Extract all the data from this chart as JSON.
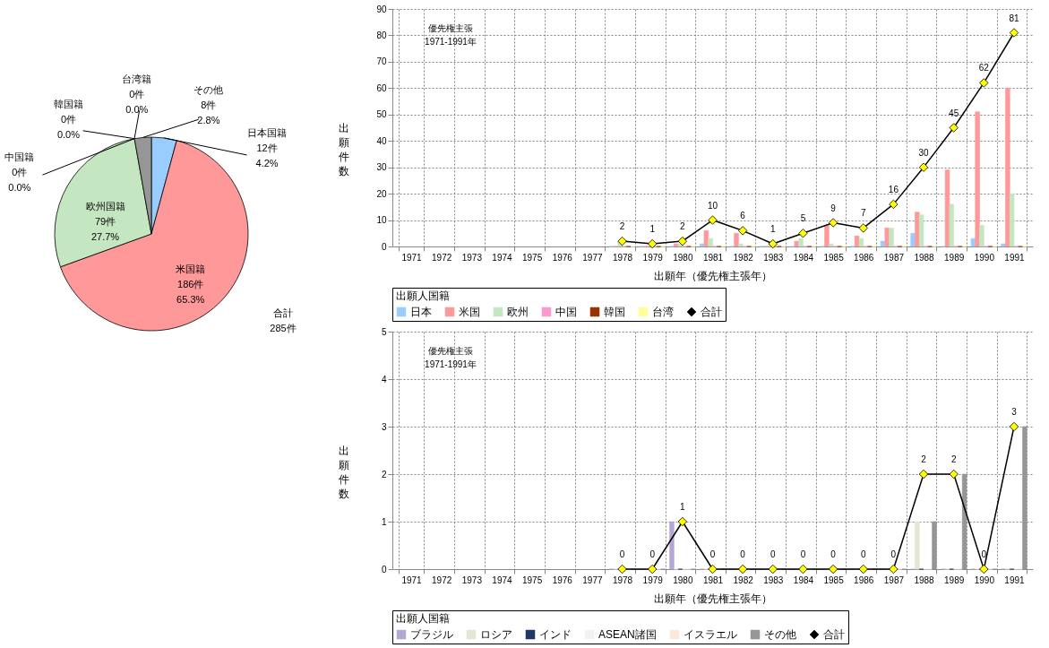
{
  "chart_data": [
    {
      "type": "pie",
      "categories": [
        "日本国籍",
        "米国籍",
        "欧州国籍",
        "中国籍",
        "韓国籍",
        "台湾籍",
        "その他"
      ],
      "values": [
        12,
        186,
        79,
        0,
        0,
        0,
        8
      ],
      "colors": [
        "#99ccff",
        "#ff9999",
        "#c4e6c0",
        "#ff99cc",
        "#993300",
        "#ffff99",
        "#969696"
      ],
      "value_labels": [
        "12件\n4.2%",
        "186件\n65.3%",
        "79件\n27.7%",
        "0件\n0.0%",
        "0件\n0.0%",
        "0件\n0.0%",
        "8件\n2.8%"
      ],
      "annotations": [
        "合計\n285件"
      ]
    },
    {
      "type": "bar",
      "xlabel": "出願年（優先権主張年）",
      "ylabel": "出願件数",
      "legend_title": "出願人国籍",
      "legend": "bottom",
      "grid": true,
      "marker": "diamond",
      "categories": [
        "1971",
        "1972",
        "1973",
        "1974",
        "1975",
        "1976",
        "1977",
        "1978",
        "1979",
        "1980",
        "1981",
        "1982",
        "1983",
        "1984",
        "1985",
        "1986",
        "1987",
        "1988",
        "1989",
        "1990",
        "1991"
      ],
      "ylim": [
        0,
        90
      ],
      "yticks": [
        0,
        10,
        20,
        30,
        40,
        50,
        60,
        70,
        80,
        90
      ],
      "series": [
        {
          "name": "日本",
          "color": "#99ccff",
          "values": [
            null,
            null,
            null,
            null,
            null,
            null,
            null,
            0,
            0,
            0,
            1,
            0,
            0,
            0,
            0,
            0,
            2,
            5,
            0,
            3,
            1
          ]
        },
        {
          "name": "米国",
          "color": "#ff9999",
          "values": [
            null,
            null,
            null,
            null,
            null,
            null,
            null,
            0,
            0,
            1,
            6,
            5,
            0,
            2,
            8,
            4,
            7,
            13,
            29,
            51,
            60
          ]
        },
        {
          "name": "欧州",
          "color": "#c4e6c0",
          "values": [
            null,
            null,
            null,
            null,
            null,
            null,
            null,
            2,
            null,
            1,
            3,
            1,
            1,
            3,
            1,
            3,
            7,
            12,
            16,
            8,
            20
          ]
        },
        {
          "name": "中国",
          "color": "#ff99cc",
          "values": [
            null,
            null,
            null,
            null,
            null,
            null,
            null,
            0,
            0,
            0,
            0,
            0,
            0,
            0,
            0,
            0,
            0,
            0,
            0,
            0,
            0
          ]
        },
        {
          "name": "韓国",
          "color": "#993300",
          "values": [
            null,
            null,
            null,
            null,
            null,
            null,
            null,
            0,
            0,
            0,
            0,
            0,
            0,
            0,
            0,
            0,
            0,
            0,
            0,
            0,
            0
          ]
        },
        {
          "name": "台湾",
          "color": "#ffff99",
          "values": [
            null,
            null,
            null,
            null,
            null,
            null,
            null,
            0,
            0,
            0,
            0,
            0,
            0,
            0,
            0,
            0,
            0,
            0,
            0,
            0,
            0
          ]
        },
        {
          "name": "合計",
          "type": "line",
          "color": "#000000",
          "values": [
            null,
            null,
            null,
            null,
            null,
            null,
            null,
            2,
            1,
            2,
            10,
            6,
            1,
            5,
            9,
            7,
            16,
            30,
            45,
            62,
            81
          ],
          "value_labels": [
            null,
            null,
            null,
            null,
            null,
            null,
            null,
            "2",
            "1",
            "2",
            "10",
            "6",
            "1",
            "5",
            "9",
            "7",
            "16",
            "30",
            "45",
            "62",
            "81"
          ]
        }
      ],
      "annotations": [
        "優先権主張\n1971-1991年"
      ]
    },
    {
      "type": "bar",
      "xlabel": "出願年（優先権主張年）",
      "ylabel": "出願件数",
      "legend_title": "出願人国籍",
      "legend": "bottom",
      "grid": true,
      "marker": "diamond",
      "categories": [
        "1971",
        "1972",
        "1973",
        "1974",
        "1975",
        "1976",
        "1977",
        "1978",
        "1979",
        "1980",
        "1981",
        "1982",
        "1983",
        "1984",
        "1985",
        "1986",
        "1987",
        "1988",
        "1989",
        "1990",
        "1991"
      ],
      "ylim": [
        0,
        5
      ],
      "yticks": [
        0,
        1,
        2,
        3,
        4,
        5
      ],
      "series": [
        {
          "name": "ブラジル",
          "color": "#b4a7d6",
          "values": [
            null,
            null,
            null,
            null,
            null,
            null,
            null,
            0,
            0,
            1,
            0,
            0,
            0,
            0,
            0,
            0,
            0,
            0,
            0,
            0,
            0
          ]
        },
        {
          "name": "ロシア",
          "color": "#e6e6d2",
          "values": [
            null,
            null,
            null,
            null,
            null,
            null,
            null,
            0,
            0,
            0,
            0,
            0,
            0,
            0,
            0,
            0,
            0,
            1,
            0,
            0,
            0
          ]
        },
        {
          "name": "インド",
          "color": "#1f3864",
          "values": [
            null,
            null,
            null,
            null,
            null,
            null,
            null,
            0,
            0,
            0,
            0,
            0,
            0,
            0,
            0,
            0,
            0,
            0,
            0,
            0,
            0
          ]
        },
        {
          "name": "ASEAN諸国",
          "color": "#f2f2f2",
          "values": [
            null,
            null,
            null,
            null,
            null,
            null,
            null,
            0,
            0,
            0,
            0,
            0,
            0,
            0,
            0,
            0,
            0,
            0,
            0,
            0,
            0
          ]
        },
        {
          "name": "イスラエル",
          "color": "#fde9d9",
          "values": [
            null,
            null,
            null,
            null,
            null,
            null,
            null,
            0,
            0,
            0,
            0,
            0,
            0,
            0,
            0,
            0,
            0,
            0,
            0,
            0,
            0
          ]
        },
        {
          "name": "その他",
          "color": "#969696",
          "values": [
            null,
            null,
            null,
            null,
            null,
            null,
            null,
            0,
            0,
            0,
            0,
            0,
            0,
            0,
            0,
            0,
            0,
            1,
            2,
            0,
            3
          ]
        },
        {
          "name": "合計",
          "type": "line",
          "color": "#000000",
          "values": [
            null,
            null,
            null,
            null,
            null,
            null,
            null,
            0,
            0,
            1,
            0,
            0,
            0,
            0,
            0,
            0,
            0,
            2,
            2,
            0,
            3
          ],
          "value_labels": [
            null,
            null,
            null,
            null,
            null,
            null,
            null,
            "0",
            "0",
            "1",
            "0",
            "0",
            "0",
            "0",
            "0",
            "0",
            "0",
            "2",
            "2",
            "0",
            "3"
          ]
        }
      ],
      "annotations": [
        "優先権主張\n1971-1991年"
      ]
    }
  ]
}
